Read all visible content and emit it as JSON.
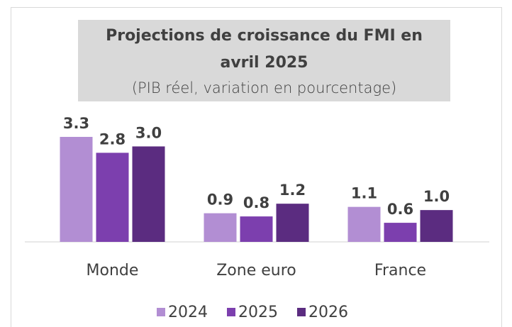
{
  "chart_data": {
    "type": "bar",
    "title": "Projections de croissance du FMI en avril 2025",
    "subtitle": "(PIB réel, variation en pourcentage)",
    "categories": [
      "Monde",
      "Zone euro",
      "France"
    ],
    "series": [
      {
        "name": "2024",
        "color": "#b28ed3",
        "values": [
          3.3,
          0.9,
          1.1
        ],
        "value_labels": [
          "3.3",
          "0.9",
          "1.1"
        ]
      },
      {
        "name": "2025",
        "color": "#7c3fae",
        "values": [
          2.8,
          0.8,
          0.6
        ],
        "value_labels": [
          "2.8",
          "0.8",
          "0.6"
        ]
      },
      {
        "name": "2026",
        "color": "#5b2c80",
        "values": [
          3.0,
          1.2,
          1.0
        ],
        "value_labels": [
          "3.0",
          "1.2",
          "1.0"
        ]
      }
    ],
    "ylim": [
      0,
      3.5
    ],
    "legend": "bottom"
  }
}
